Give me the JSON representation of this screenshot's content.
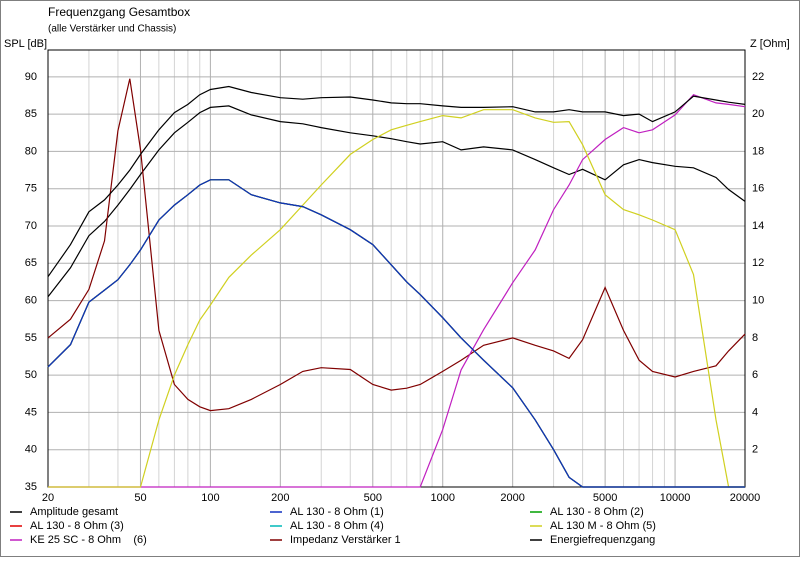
{
  "chart_data": {
    "type": "line",
    "title": "Frequenzgang Gesamtbox",
    "subtitle": "(alle Verstärker und Chassis)",
    "y_label": "SPL [dB]",
    "y2_label": "Z [Ohm]",
    "xlog": true,
    "grid": true,
    "legend": "bottom",
    "x": [
      20,
      25,
      30,
      35,
      40,
      45,
      50,
      60,
      70,
      80,
      90,
      100,
      120,
      150,
      200,
      250,
      300,
      400,
      500,
      600,
      700,
      800,
      1000,
      1200,
      1500,
      2000,
      2500,
      3000,
      3500,
      4000,
      5000,
      6000,
      7000,
      8000,
      10000,
      12000,
      15000,
      17000,
      20000
    ],
    "xlim": [
      20,
      20000
    ],
    "xticks": [
      20,
      50,
      100,
      200,
      500,
      1000,
      2000,
      5000,
      10000,
      20000
    ],
    "xminorticks": [
      30,
      40,
      60,
      70,
      80,
      90,
      300,
      400,
      600,
      700,
      800,
      900,
      3000,
      4000,
      6000,
      7000,
      8000,
      9000
    ],
    "ylim": [
      35,
      93.6
    ],
    "yticks": [
      35,
      40,
      45,
      50,
      55,
      60,
      65,
      70,
      75,
      80,
      85,
      90
    ],
    "y2lim": [
      0,
      23.44
    ],
    "y2ticks": [
      2,
      4,
      6,
      8,
      10,
      12,
      14,
      16,
      18,
      20,
      22
    ],
    "series": [
      {
        "name": "Amplitude gesamt",
        "color": "#000000",
        "values": [
          63.2,
          67.5,
          71.9,
          73.5,
          75.5,
          77.5,
          79.6,
          82.9,
          85.2,
          86.3,
          87.6,
          88.3,
          88.7,
          87.9,
          87.2,
          87.0,
          87.2,
          87.3,
          86.9,
          86.5,
          86.4,
          86.4,
          86.1,
          85.9,
          85.9,
          86.0,
          85.3,
          85.3,
          85.6,
          85.3,
          85.3,
          84.8,
          85.0,
          84.0,
          85.3,
          87.4,
          86.9,
          86.6,
          86.3
        ]
      },
      {
        "name": "AL 130 - 8 Ohm (1)",
        "color": "#1030c0",
        "values": [
          51.1,
          54.1,
          59.8,
          61.4,
          62.8,
          64.8,
          66.8,
          70.8,
          72.8,
          74.2,
          75.5,
          76.2,
          76.2,
          74.2,
          73.1,
          72.6,
          71.5,
          69.5,
          67.5,
          64.8,
          62.5,
          60.8,
          57.7,
          55.0,
          52.0,
          48.3,
          44.0,
          40.0,
          36.3,
          35,
          35,
          35,
          35,
          35,
          35,
          35,
          35,
          35,
          35
        ]
      },
      {
        "name": "AL 130 - 8 Ohm (2)",
        "color": "#00a000",
        "values": [
          51.1,
          54.1,
          59.8,
          61.4,
          62.8,
          64.8,
          66.8,
          70.8,
          72.8,
          74.2,
          75.5,
          76.2,
          76.2,
          74.2,
          73.1,
          72.6,
          71.5,
          69.5,
          67.5,
          64.8,
          62.5,
          60.8,
          57.7,
          55.0,
          52.0,
          48.3,
          44.0,
          40.0,
          36.3,
          35,
          35,
          35,
          35,
          35,
          35,
          35,
          35,
          35,
          35
        ]
      },
      {
        "name": "AL 130 - 8 Ohm (3)",
        "color": "#e00000",
        "values": [
          51.1,
          54.1,
          59.8,
          61.4,
          62.8,
          64.8,
          66.8,
          70.8,
          72.8,
          74.2,
          75.5,
          76.2,
          76.2,
          74.2,
          73.1,
          72.6,
          71.5,
          69.5,
          67.5,
          64.8,
          62.5,
          60.8,
          57.7,
          55.0,
          52.0,
          48.3,
          44.0,
          40.0,
          36.3,
          35,
          35,
          35,
          35,
          35,
          35,
          35,
          35,
          35,
          35
        ]
      },
      {
        "name": "AL 130 - 8 Ohm (4)",
        "color": "#00b8b8",
        "values": [
          51.1,
          54.1,
          59.8,
          61.4,
          62.8,
          64.8,
          66.8,
          70.8,
          72.8,
          74.2,
          75.5,
          76.2,
          76.2,
          74.2,
          73.1,
          72.6,
          71.5,
          69.5,
          67.5,
          64.8,
          62.5,
          60.8,
          57.7,
          55.0,
          52.0,
          48.3,
          44.0,
          40.0,
          36.3,
          35,
          35,
          35,
          35,
          35,
          35,
          35,
          35,
          35,
          35
        ]
      },
      {
        "name": "AL 130 M - 8 Ohm (5)",
        "color": "#d0d020",
        "values": [
          35,
          35,
          35,
          35,
          35,
          35,
          35,
          44.0,
          50.0,
          54.1,
          57.4,
          59.4,
          63.1,
          66.1,
          69.5,
          72.8,
          75.5,
          79.6,
          81.6,
          82.9,
          83.5,
          84.0,
          84.8,
          84.5,
          85.6,
          85.6,
          84.5,
          83.9,
          84.0,
          80.9,
          74.2,
          72.2,
          71.5,
          70.8,
          69.5,
          63.5,
          44.0,
          35,
          35
        ]
      },
      {
        "name": "KE 25 SC - 8 Ohm    (6)",
        "color": "#c020c0",
        "values": [
          35,
          35,
          35,
          35,
          35,
          35,
          35,
          35,
          35,
          35,
          35,
          35,
          35,
          35,
          35,
          35,
          35,
          35,
          35,
          35,
          35,
          35,
          42.7,
          50.7,
          56.1,
          62.4,
          66.8,
          72.2,
          75.5,
          78.9,
          81.6,
          83.2,
          82.5,
          82.9,
          84.9,
          87.6,
          86.5,
          86.3,
          86.0
        ]
      },
      {
        "name": "Impedanz Verstärker 1",
        "color": "#800000",
        "axis": "y2",
        "values": [
          8.0,
          9.0,
          10.6,
          13.2,
          19.1,
          21.9,
          18.1,
          8.4,
          5.5,
          4.7,
          4.3,
          4.1,
          4.2,
          4.7,
          5.5,
          6.2,
          6.4,
          6.3,
          5.5,
          5.2,
          5.3,
          5.5,
          6.2,
          6.8,
          7.6,
          8.0,
          7.6,
          7.3,
          6.9,
          7.9,
          10.7,
          8.4,
          6.8,
          6.2,
          5.9,
          6.2,
          6.5,
          7.3,
          8.2
        ]
      },
      {
        "name": "Energiefrequenzgang",
        "color": "#000000",
        "values": [
          60.5,
          64.4,
          68.7,
          70.6,
          72.8,
          74.9,
          76.9,
          80.2,
          82.5,
          83.9,
          85.2,
          85.9,
          86.1,
          84.9,
          84.0,
          83.7,
          83.2,
          82.5,
          82.1,
          81.7,
          81.3,
          81.0,
          81.3,
          80.2,
          80.6,
          80.2,
          78.9,
          77.8,
          76.9,
          77.6,
          76.2,
          78.2,
          78.9,
          78.5,
          78.0,
          77.8,
          76.5,
          74.9,
          73.3
        ]
      }
    ]
  }
}
